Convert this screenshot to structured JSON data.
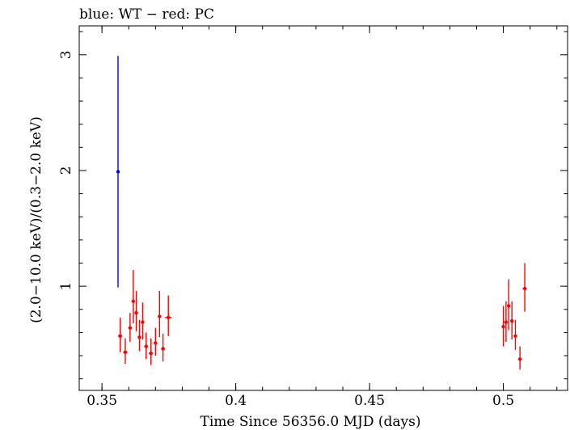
{
  "chart_data": {
    "type": "scatter",
    "title": "blue: WT − red: PC",
    "xlabel": "Time Since 56356.0 MJD (days)",
    "ylabel": "(2.0−10.0 keV)/(0.3−2.0 keV)",
    "xlim": [
      0.3415,
      0.524
    ],
    "ylim": [
      0.1,
      3.25
    ],
    "xticks": [
      {
        "value": 0.35,
        "label": "0.35"
      },
      {
        "value": 0.4,
        "label": "0.4"
      },
      {
        "value": 0.45,
        "label": "0.45"
      },
      {
        "value": 0.5,
        "label": "0.5"
      }
    ],
    "yticks": [
      {
        "value": 1,
        "label": "1"
      },
      {
        "value": 2,
        "label": "2"
      },
      {
        "value": 3,
        "label": "3"
      }
    ],
    "series": [
      {
        "name": "WT",
        "color": "#0000ff",
        "points": [
          {
            "x": 0.356,
            "y": 1.99,
            "ylo": 0.99,
            "yhi": 2.99,
            "xerr": 0.0
          }
        ]
      },
      {
        "name": "PC",
        "color": "#ff0000",
        "points": [
          {
            "x": 0.3568,
            "y": 0.57,
            "ylo": 0.43,
            "yhi": 0.73,
            "xerr": 0.0008
          },
          {
            "x": 0.3587,
            "y": 0.43,
            "ylo": 0.33,
            "yhi": 0.55,
            "xerr": 0.0008
          },
          {
            "x": 0.3605,
            "y": 0.64,
            "ylo": 0.52,
            "yhi": 0.77,
            "xerr": 0.0007
          },
          {
            "x": 0.3617,
            "y": 0.87,
            "ylo": 0.68,
            "yhi": 1.14,
            "xerr": 0.0006
          },
          {
            "x": 0.3628,
            "y": 0.77,
            "ylo": 0.61,
            "yhi": 0.96,
            "xerr": 0.0006
          },
          {
            "x": 0.364,
            "y": 0.56,
            "ylo": 0.44,
            "yhi": 0.71,
            "xerr": 0.0006
          },
          {
            "x": 0.3652,
            "y": 0.69,
            "ylo": 0.54,
            "yhi": 0.86,
            "xerr": 0.0006
          },
          {
            "x": 0.3665,
            "y": 0.48,
            "ylo": 0.37,
            "yhi": 0.6,
            "xerr": 0.0007
          },
          {
            "x": 0.3683,
            "y": 0.42,
            "ylo": 0.32,
            "yhi": 0.55,
            "xerr": 0.0008
          },
          {
            "x": 0.37,
            "y": 0.51,
            "ylo": 0.4,
            "yhi": 0.64,
            "xerr": 0.0007
          },
          {
            "x": 0.3715,
            "y": 0.74,
            "ylo": 0.56,
            "yhi": 0.96,
            "xerr": 0.0007
          },
          {
            "x": 0.3728,
            "y": 0.46,
            "ylo": 0.35,
            "yhi": 0.59,
            "xerr": 0.0007
          },
          {
            "x": 0.3748,
            "y": 0.73,
            "ylo": 0.57,
            "yhi": 0.92,
            "xerr": 0.0012
          },
          {
            "x": 0.5,
            "y": 0.65,
            "ylo": 0.48,
            "yhi": 0.83,
            "xerr": 0.0006
          },
          {
            "x": 0.501,
            "y": 0.69,
            "ylo": 0.52,
            "yhi": 0.87,
            "xerr": 0.0005
          },
          {
            "x": 0.502,
            "y": 0.83,
            "ylo": 0.62,
            "yhi": 1.06,
            "xerr": 0.0005
          },
          {
            "x": 0.5032,
            "y": 0.7,
            "ylo": 0.54,
            "yhi": 0.87,
            "xerr": 0.0006
          },
          {
            "x": 0.5045,
            "y": 0.57,
            "ylo": 0.45,
            "yhi": 0.71,
            "xerr": 0.0006
          },
          {
            "x": 0.5062,
            "y": 0.37,
            "ylo": 0.28,
            "yhi": 0.48,
            "xerr": 0.0007
          },
          {
            "x": 0.508,
            "y": 0.98,
            "ylo": 0.78,
            "yhi": 1.2,
            "xerr": 0.0008
          }
        ]
      }
    ]
  }
}
